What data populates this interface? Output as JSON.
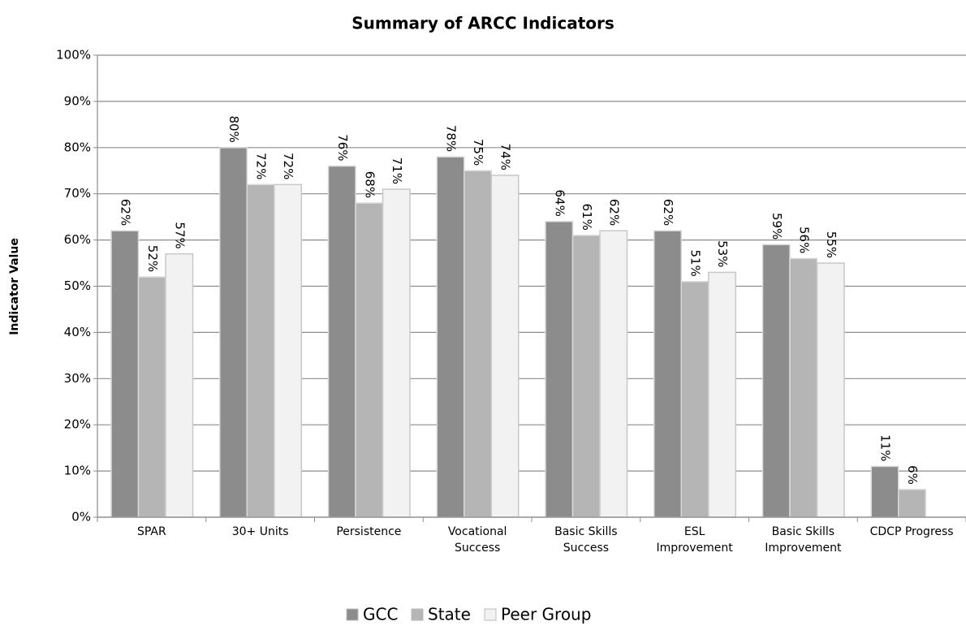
{
  "chart_data": {
    "type": "bar",
    "title": "Summary of ARCC Indicators",
    "y_label": "Indicator Value",
    "categories": [
      "SPAR",
      "30+ Units",
      "Persistence",
      "Vocational Success",
      "Basic Skills Success",
      "ESL Improvement",
      "Basic Skills Improvement",
      "CDCP Progress"
    ],
    "series": [
      {
        "name": "GCC",
        "color": "#8c8c8c",
        "values": [
          62,
          80,
          76,
          78,
          64,
          62,
          59,
          11
        ],
        "value_labels": [
          "62%",
          "80%",
          "76%",
          "78%",
          "64%",
          "62%",
          "59%",
          "11%"
        ]
      },
      {
        "name": "State",
        "color": "#b5b5b5",
        "values": [
          52,
          72,
          68,
          75,
          61,
          51,
          56,
          6
        ],
        "value_labels": [
          "52%",
          "72%",
          "68%",
          "75%",
          "61%",
          "51%",
          "56%",
          "6%"
        ]
      },
      {
        "name": "Peer Group",
        "color": "#f2f2f2",
        "values": [
          57,
          72,
          71,
          74,
          62,
          53,
          55,
          null
        ],
        "value_labels": [
          "57%",
          "72%",
          "71%",
          "74%",
          "62%",
          "53%",
          "55%",
          null
        ]
      }
    ],
    "ylim": [
      0,
      100
    ],
    "yticks": [
      {
        "value": 0,
        "label": "0%"
      },
      {
        "value": 10,
        "label": "10%"
      },
      {
        "value": 20,
        "label": "20%"
      },
      {
        "value": 30,
        "label": "30%"
      },
      {
        "value": 40,
        "label": "40%"
      },
      {
        "value": 50,
        "label": "50%"
      },
      {
        "value": 60,
        "label": "60%"
      },
      {
        "value": 70,
        "label": "70%"
      },
      {
        "value": 80,
        "label": "80%"
      },
      {
        "value": 90,
        "label": "90%"
      },
      {
        "value": 100,
        "label": "100%"
      }
    ],
    "grid": true
  }
}
